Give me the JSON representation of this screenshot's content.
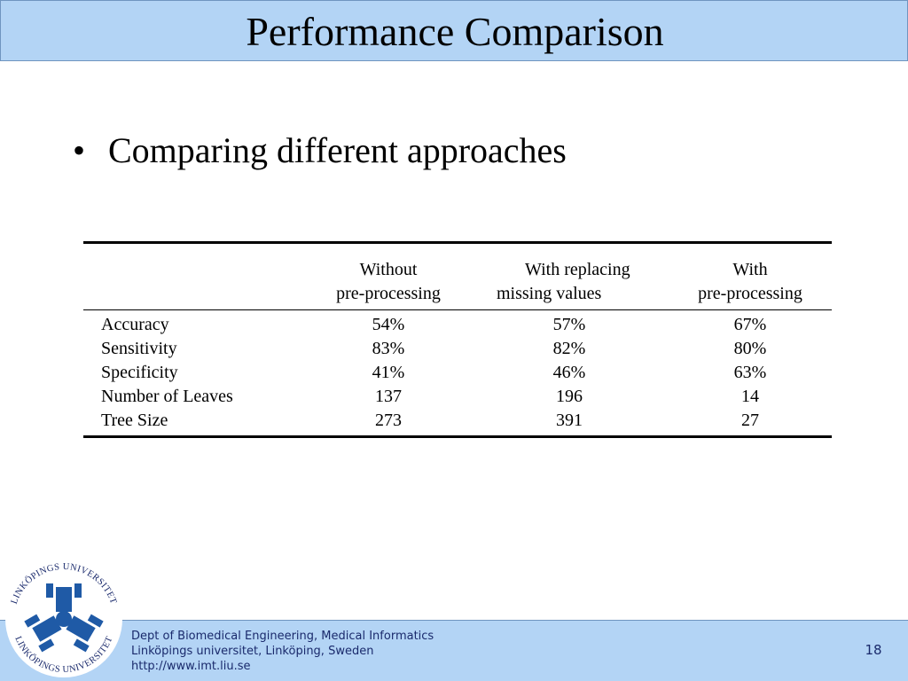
{
  "slide": {
    "title": "Performance Comparison",
    "bullet_symbol": "•",
    "bullet_text": "Comparing different approaches",
    "page_number": "18"
  },
  "table": {
    "headers": [
      [
        "Without",
        "pre-processing"
      ],
      [
        "With replacing",
        "missing values"
      ],
      [
        "With",
        "pre-processing"
      ]
    ],
    "rows": [
      {
        "label": "Accuracy",
        "values": [
          "54%",
          "57%",
          "67%"
        ]
      },
      {
        "label": "Sensitivity",
        "values": [
          "83%",
          "82%",
          "80%"
        ]
      },
      {
        "label": "Specificity",
        "values": [
          "41%",
          "46%",
          "63%"
        ]
      },
      {
        "label": "Number of Leaves",
        "values": [
          "137",
          "196",
          "14"
        ]
      },
      {
        "label": "Tree Size",
        "values": [
          "273",
          "391",
          "27"
        ]
      }
    ]
  },
  "footer": {
    "dept": "Dept of Biomedical Engineering, Medical Informatics",
    "university": "Linköpings universitet, Linköping, Sweden",
    "url": "http://www.imt.liu.se"
  },
  "logo": {
    "ring_text": "LINKÖPINGS UNIVERSITET",
    "icon": "university-logo"
  },
  "colors": {
    "band_fill": "#b3d4f5",
    "band_border": "#6f95c0",
    "footer_text": "#1a2a6c",
    "logo_blue": "#1f5aa6"
  }
}
